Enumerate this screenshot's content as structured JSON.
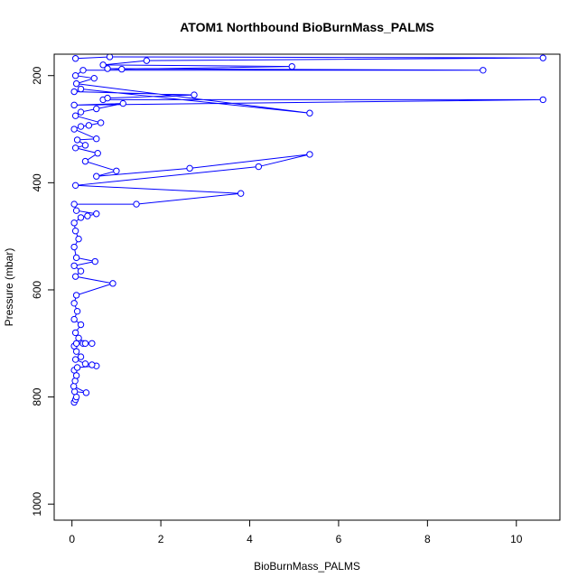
{
  "chart_data": {
    "type": "scatter",
    "title": "ATOM1 Northbound BioBurnMass_PALMS",
    "xlabel": "BioBurnMass_PALMS",
    "ylabel": "Pressure (mbar)",
    "xlim": [
      -0.4,
      10.98
    ],
    "ylim": [
      1030,
      160
    ],
    "y_reversed": true,
    "grid": false,
    "x_ticks": [
      0,
      2,
      4,
      6,
      8,
      10
    ],
    "y_ticks": [
      200,
      400,
      600,
      800,
      1000
    ],
    "series_color": "#0000ff",
    "series": [
      {
        "points": [
          [
            0.05,
            810
          ],
          [
            0.08,
            805
          ],
          [
            0.1,
            800
          ],
          [
            0.06,
            790
          ],
          [
            0.32,
            792
          ],
          [
            0.04,
            780
          ],
          [
            0.07,
            770
          ],
          [
            0.1,
            760
          ],
          [
            0.05,
            750
          ],
          [
            0.12,
            745
          ],
          [
            0.55,
            742
          ],
          [
            0.45,
            740
          ],
          [
            0.3,
            738
          ],
          [
            0.08,
            730
          ],
          [
            0.2,
            725
          ],
          [
            0.1,
            715
          ],
          [
            0.05,
            705
          ],
          [
            0.1,
            700
          ],
          [
            0.25,
            700
          ],
          [
            0.45,
            700
          ],
          [
            0.3,
            700
          ],
          [
            0.15,
            690
          ],
          [
            0.08,
            680
          ],
          [
            0.2,
            665
          ],
          [
            0.05,
            655
          ],
          [
            0.12,
            640
          ],
          [
            0.05,
            625
          ],
          [
            0.1,
            610
          ],
          [
            0.92,
            588
          ],
          [
            0.08,
            575
          ],
          [
            0.2,
            565
          ],
          [
            0.05,
            555
          ],
          [
            0.52,
            547
          ],
          [
            0.1,
            540
          ],
          [
            0.05,
            520
          ],
          [
            0.15,
            505
          ],
          [
            0.08,
            490
          ],
          [
            0.05,
            475
          ],
          [
            0.2,
            465
          ],
          [
            0.35,
            462
          ],
          [
            0.55,
            458
          ],
          [
            0.1,
            452
          ],
          [
            0.05,
            440
          ],
          [
            1.45,
            440
          ],
          [
            3.8,
            420
          ],
          [
            0.08,
            405
          ],
          [
            4.2,
            370
          ],
          [
            5.35,
            347
          ],
          [
            2.65,
            373
          ],
          [
            0.55,
            388
          ],
          [
            1.0,
            378
          ],
          [
            0.3,
            360
          ],
          [
            0.58,
            345
          ],
          [
            0.08,
            335
          ],
          [
            0.3,
            330
          ],
          [
            0.12,
            320
          ],
          [
            0.55,
            318
          ],
          [
            0.05,
            300
          ],
          [
            0.2,
            295
          ],
          [
            0.38,
            293
          ],
          [
            0.65,
            288
          ],
          [
            0.08,
            275
          ],
          [
            0.2,
            268
          ],
          [
            0.55,
            262
          ],
          [
            1.15,
            252
          ],
          [
            0.05,
            255
          ],
          [
            10.6,
            245
          ],
          [
            0.7,
            245
          ],
          [
            0.8,
            242
          ],
          [
            2.75,
            236
          ],
          [
            0.05,
            230
          ],
          [
            0.2,
            225
          ],
          [
            5.35,
            270
          ],
          [
            0.1,
            215
          ],
          [
            0.5,
            205
          ],
          [
            0.08,
            200
          ],
          [
            0.25,
            190
          ],
          [
            9.25,
            190
          ],
          [
            0.8,
            187
          ],
          [
            1.12,
            188
          ],
          [
            4.95,
            183
          ],
          [
            0.7,
            180
          ],
          [
            1.68,
            172
          ],
          [
            10.6,
            167
          ],
          [
            0.85,
            165
          ],
          [
            0.08,
            168
          ]
        ]
      }
    ]
  }
}
